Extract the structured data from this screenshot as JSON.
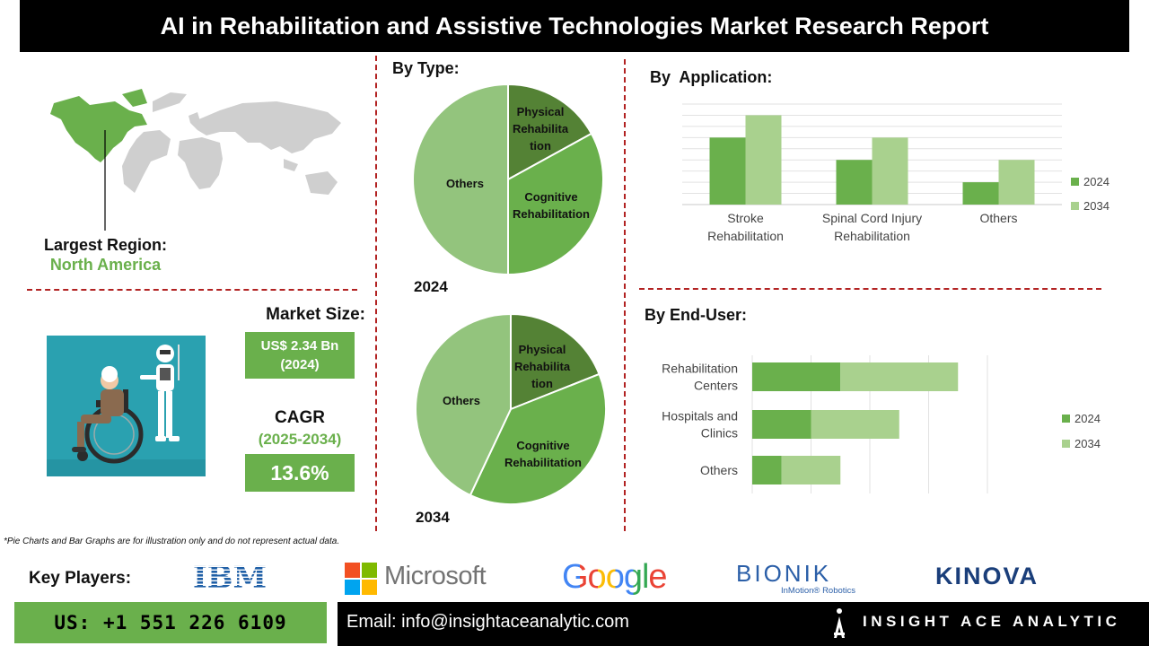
{
  "title": "AI in Rehabilitation and Assistive Technologies Market Research Report",
  "region": {
    "label": "Largest Region:",
    "value": "North America"
  },
  "market_size": {
    "label": "Market Size:",
    "value": "US$ 2.34 Bn",
    "year": "(2024)"
  },
  "cagr": {
    "label": "CAGR",
    "years": "(2025-2034)",
    "value": "13.6%"
  },
  "colors": {
    "dark_green": "#548235",
    "mid_green": "#6ab04c",
    "light_green": "#a9d18e",
    "pie_light": "#93c47d",
    "red_dash": "#b22222"
  },
  "footnote": "*Pie Charts and Bar Graphs are for illustration only and do not represent actual data.",
  "key_players": {
    "label": "Key Players:",
    "ibm": "IBM",
    "microsoft": "Microsoft",
    "google": "Google",
    "bionik": "BIONIK",
    "bionik_sub": "InMotion® Robotics",
    "kinova": "KINOVA"
  },
  "contact": {
    "phone": "US: +1 551 226 6109",
    "email": "Email: info@insightaceanalytic.com",
    "brand": "INSIGHT ACE ANALYTIC"
  },
  "chart_data": [
    {
      "type": "pie",
      "title": "By Type:",
      "year": "2024",
      "slices": [
        {
          "label": "Physical Rehabilita tion",
          "value": 17
        },
        {
          "label": "Cognitive Rehabilitation",
          "value": 33
        },
        {
          "label": "Others",
          "value": 50
        }
      ]
    },
    {
      "type": "pie",
      "year": "2034",
      "slices": [
        {
          "label": "Physical Rehabilita tion",
          "value": 19
        },
        {
          "label": "Cognitive Rehabilitation",
          "value": 38
        },
        {
          "label": "Others",
          "value": 43
        }
      ]
    },
    {
      "type": "bar",
      "title": "By  Application:",
      "categories": [
        "Stroke Rehabilitation",
        "Spinal Cord Injury Rehabilitation",
        "Others"
      ],
      "category_lines": [
        [
          "Stroke",
          "Rehabilitation"
        ],
        [
          "Spinal Cord Injury",
          "Rehabilitation"
        ],
        [
          "Others"
        ]
      ],
      "series": [
        {
          "name": "2024",
          "values": [
            3,
            2,
            1
          ]
        },
        {
          "name": "2034",
          "values": [
            4,
            3,
            2
          ]
        }
      ],
      "ylim": [
        0,
        4.5
      ],
      "grid": true,
      "legend": "right"
    },
    {
      "type": "bar",
      "orientation": "horizontal",
      "stacked": true,
      "title": "By End-User:",
      "categories": [
        "Rehabilitation Centers",
        "Hospitals and Clinics",
        "Others"
      ],
      "category_lines": [
        [
          "Rehabilitation",
          "Centers"
        ],
        [
          "Hospitals and",
          "Clinics"
        ],
        [
          "Others"
        ]
      ],
      "series": [
        {
          "name": "2024",
          "values": [
            3,
            2,
            1
          ]
        },
        {
          "name": "2034",
          "values": [
            4,
            3,
            2
          ]
        }
      ],
      "xlim": [
        0,
        8
      ],
      "grid": true,
      "legend": "right"
    }
  ]
}
